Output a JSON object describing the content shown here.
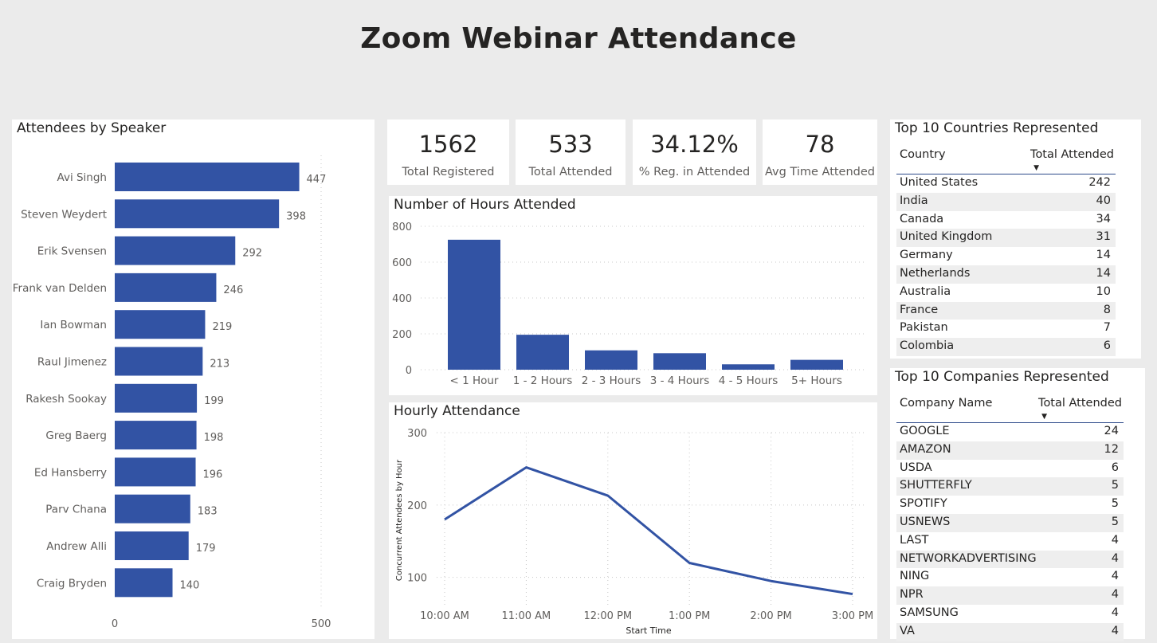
{
  "dashboard": {
    "title": "Zoom Webinar Attendance"
  },
  "kpis": [
    {
      "value": "1562",
      "label": "Total Registered"
    },
    {
      "value": "533",
      "label": "Total Attended"
    },
    {
      "value": "34.12%",
      "label": "% Reg. in Attended"
    },
    {
      "value": "78",
      "label": "Avg Time Attended"
    }
  ],
  "countries": {
    "title": "Top 10 Countries Represented",
    "col1": "Country",
    "col2": "Total Attended",
    "rows": [
      {
        "name": "United States",
        "value": "242"
      },
      {
        "name": "India",
        "value": "40"
      },
      {
        "name": "Canada",
        "value": "34"
      },
      {
        "name": "United Kingdom",
        "value": "31"
      },
      {
        "name": "Germany",
        "value": "14"
      },
      {
        "name": "Netherlands",
        "value": "14"
      },
      {
        "name": "Australia",
        "value": "10"
      },
      {
        "name": "France",
        "value": "8"
      },
      {
        "name": "Pakistan",
        "value": "7"
      },
      {
        "name": "Colombia",
        "value": "6"
      }
    ]
  },
  "companies": {
    "title": "Top 10 Companies Represented",
    "col1": "Company Name",
    "col2": "Total Attended",
    "rows": [
      {
        "name": "GOOGLE",
        "value": "24"
      },
      {
        "name": "AMAZON",
        "value": "12"
      },
      {
        "name": "USDA",
        "value": "6"
      },
      {
        "name": "SHUTTERFLY",
        "value": "5"
      },
      {
        "name": "SPOTIFY",
        "value": "5"
      },
      {
        "name": "USNEWS",
        "value": "5"
      },
      {
        "name": "LAST",
        "value": "4"
      },
      {
        "name": "NETWORKADVERTISING",
        "value": "4"
      },
      {
        "name": "NING",
        "value": "4"
      },
      {
        "name": "NPR",
        "value": "4"
      },
      {
        "name": "SAMSUNG",
        "value": "4"
      },
      {
        "name": "VA",
        "value": "4"
      }
    ]
  },
  "colors": {
    "bar": "#3253a4",
    "grid": "#c8c8c8",
    "axis_text": "#605e5c"
  },
  "chart_data": [
    {
      "id": "speakers",
      "type": "bar",
      "orientation": "horizontal",
      "title": "Attendees by Speaker",
      "categories": [
        "Avi Singh",
        "Steven Weydert",
        "Erik Svensen",
        "Frank van Delden",
        "Ian Bowman",
        "Raul Jimenez",
        "Rakesh Sookay",
        "Greg Baerg",
        "Ed Hansberry",
        "Parv Chana",
        "Andrew Alli",
        "Craig Bryden"
      ],
      "values": [
        447,
        398,
        292,
        246,
        219,
        213,
        199,
        198,
        196,
        183,
        179,
        140
      ],
      "xlim": [
        0,
        500
      ],
      "xticks": [
        0,
        500
      ],
      "grid": true
    },
    {
      "id": "hours",
      "type": "bar",
      "title": "Number of Hours Attended",
      "categories": [
        "< 1 Hour",
        "1 - 2 Hours",
        "2 - 3 Hours",
        "3 - 4 Hours",
        "4 - 5 Hours",
        "5+ Hours"
      ],
      "values": [
        725,
        195,
        108,
        92,
        30,
        55
      ],
      "ylim": [
        0,
        800
      ],
      "yticks": [
        0,
        200,
        400,
        600,
        800
      ],
      "grid": true
    },
    {
      "id": "hourly",
      "type": "line",
      "title": "Hourly Attendance",
      "x": [
        "10:00 AM",
        "11:00 AM",
        "12:00 PM",
        "1:00 PM",
        "2:00 PM",
        "3:00 PM"
      ],
      "y": [
        180,
        252,
        213,
        120,
        95,
        77
      ],
      "ylim": [
        60,
        300
      ],
      "yticks": [
        100,
        200,
        300
      ],
      "xlabel": "Start Time",
      "ylabel": "Concurrent Attendees by Hour",
      "grid": true
    }
  ]
}
